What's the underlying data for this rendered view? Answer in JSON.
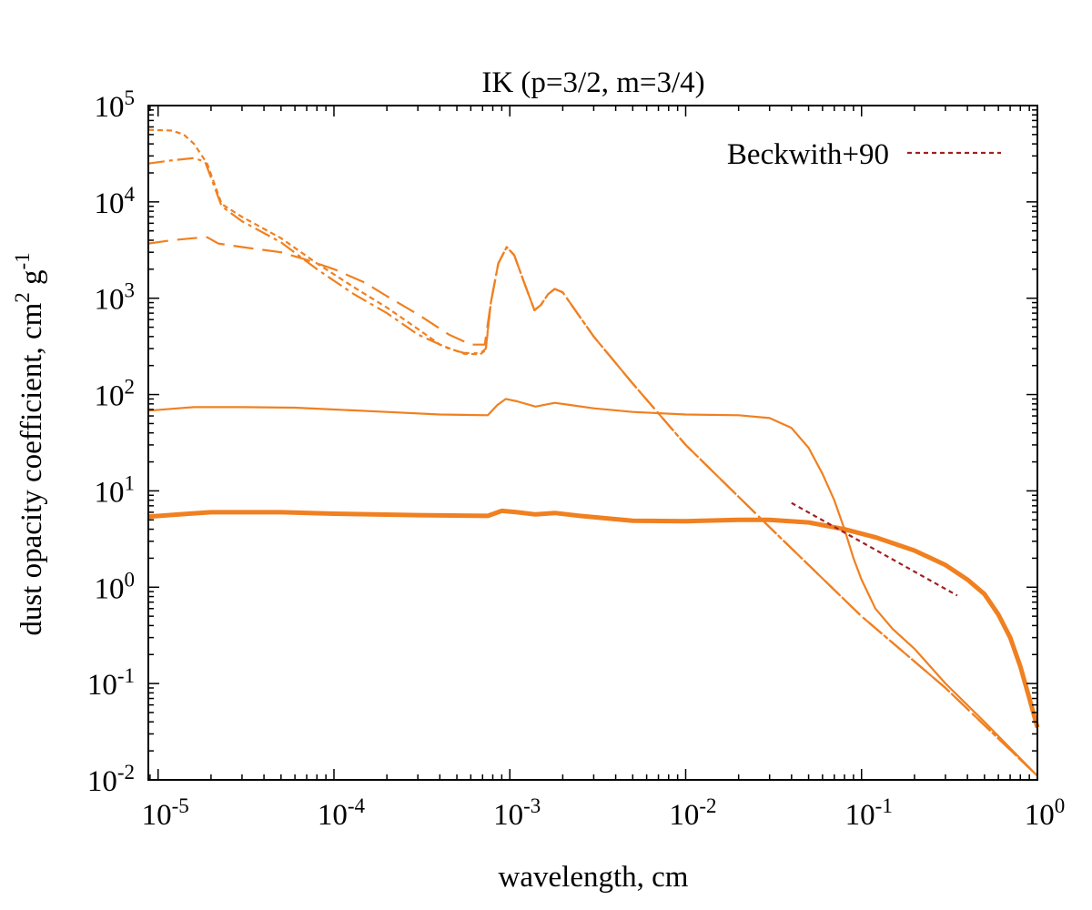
{
  "chart_data": {
    "type": "line",
    "title": "IK (p=3/2, m=3/4)",
    "xlabel": "wavelength, cm",
    "ylabel": {
      "base": "dust opacity coefficient, cm",
      "sup1": "2",
      "mid": " g",
      "sup2": "-1"
    },
    "xscale": "log",
    "yscale": "log",
    "xlim": [
      8.8e-06,
      1.0
    ],
    "ylim": [
      0.01,
      100000
    ],
    "x_ticks": [
      {
        "value": 1e-05,
        "base": "10",
        "exp": "-5"
      },
      {
        "value": 0.0001,
        "base": "10",
        "exp": "-4"
      },
      {
        "value": 0.001,
        "base": "10",
        "exp": "-3"
      },
      {
        "value": 0.01,
        "base": "10",
        "exp": "-2"
      },
      {
        "value": 0.1,
        "base": "10",
        "exp": "-1"
      },
      {
        "value": 1,
        "base": "10",
        "exp": "0"
      }
    ],
    "y_ticks": [
      {
        "value": 0.01,
        "base": "10",
        "exp": "-2"
      },
      {
        "value": 0.1,
        "base": "10",
        "exp": "-1"
      },
      {
        "value": 1,
        "base": "10",
        "exp": "0"
      },
      {
        "value": 10,
        "base": "10",
        "exp": "1"
      },
      {
        "value": 100,
        "base": "10",
        "exp": "2"
      },
      {
        "value": 1000,
        "base": "10",
        "exp": "3"
      },
      {
        "value": 10000,
        "base": "10",
        "exp": "4"
      },
      {
        "value": 100000,
        "base": "10",
        "exp": "5"
      }
    ],
    "grid": false,
    "legend_position": "top-right",
    "series": [
      {
        "style": "short-dash",
        "color": "#f08020",
        "width": 2.2,
        "points": [
          [
            8.8e-06,
            56000
          ],
          [
            1.2e-05,
            55000
          ],
          [
            1.4e-05,
            50000
          ],
          [
            1.6e-05,
            40000
          ],
          [
            1.9e-05,
            25000
          ],
          [
            2.3e-05,
            9500
          ],
          [
            3e-05,
            7000
          ],
          [
            5e-05,
            4200
          ],
          [
            8e-05,
            2300
          ],
          [
            0.00013,
            1300
          ],
          [
            0.0002,
            800
          ],
          [
            0.0003,
            480
          ],
          [
            0.0004,
            330
          ],
          [
            0.00055,
            265
          ],
          [
            0.00068,
            262
          ],
          [
            0.00073,
            290
          ],
          [
            0.00078,
            900
          ],
          [
            0.00086,
            2300
          ],
          [
            0.00096,
            3400
          ],
          [
            0.00106,
            2800
          ],
          [
            0.0012,
            1500
          ],
          [
            0.00138,
            750
          ],
          [
            0.0015,
            850
          ],
          [
            0.00165,
            1100
          ],
          [
            0.0018,
            1250
          ],
          [
            0.002,
            1150
          ],
          [
            0.003,
            400
          ],
          [
            0.005,
            130
          ],
          [
            0.01,
            30
          ],
          [
            0.03,
            4.2
          ],
          [
            0.1,
            0.5
          ],
          [
            0.3,
            0.09
          ],
          [
            1.0,
            0.011
          ]
        ]
      },
      {
        "style": "dash-dot",
        "color": "#f08020",
        "width": 2.2,
        "points": [
          [
            8.8e-06,
            25000
          ],
          [
            1.2e-05,
            27000
          ],
          [
            1.6e-05,
            28500
          ],
          [
            1.85e-05,
            26000
          ],
          [
            2.3e-05,
            9000
          ],
          [
            3e-05,
            6300
          ],
          [
            5e-05,
            3800
          ],
          [
            8e-05,
            2000
          ],
          [
            0.00013,
            1100
          ],
          [
            0.0002,
            700
          ],
          [
            0.0003,
            420
          ],
          [
            0.00045,
            300
          ],
          [
            0.00055,
            270
          ],
          [
            0.00068,
            268
          ],
          [
            0.00073,
            300
          ],
          [
            0.00078,
            900
          ],
          [
            0.00086,
            2300
          ],
          [
            0.00096,
            3400
          ],
          [
            0.00106,
            2800
          ],
          [
            0.0012,
            1500
          ],
          [
            0.00138,
            750
          ],
          [
            0.0015,
            850
          ],
          [
            0.00165,
            1100
          ],
          [
            0.0018,
            1250
          ],
          [
            0.002,
            1150
          ],
          [
            0.003,
            400
          ],
          [
            0.005,
            130
          ],
          [
            0.01,
            30
          ],
          [
            0.03,
            4.2
          ],
          [
            0.1,
            0.5
          ],
          [
            0.3,
            0.09
          ],
          [
            1.0,
            0.011
          ]
        ]
      },
      {
        "style": "long-dash",
        "color": "#f08020",
        "width": 2.2,
        "points": [
          [
            8.8e-06,
            3700
          ],
          [
            1.2e-05,
            4000
          ],
          [
            1.6e-05,
            4200
          ],
          [
            1.9e-05,
            4300
          ],
          [
            2.2e-05,
            3700
          ],
          [
            3e-05,
            3400
          ],
          [
            5e-05,
            3000
          ],
          [
            7e-05,
            2500
          ],
          [
            0.0001,
            2000
          ],
          [
            0.00015,
            1450
          ],
          [
            0.0002,
            1050
          ],
          [
            0.0003,
            680
          ],
          [
            0.00045,
            420
          ],
          [
            0.0006,
            330
          ],
          [
            0.00072,
            330
          ],
          [
            0.00078,
            900
          ],
          [
            0.00086,
            2300
          ],
          [
            0.00096,
            3400
          ],
          [
            0.00106,
            2800
          ],
          [
            0.0012,
            1500
          ],
          [
            0.00138,
            750
          ],
          [
            0.0015,
            850
          ],
          [
            0.00165,
            1100
          ],
          [
            0.0018,
            1250
          ],
          [
            0.002,
            1150
          ],
          [
            0.003,
            400
          ],
          [
            0.005,
            130
          ],
          [
            0.01,
            30
          ],
          [
            0.03,
            4.2
          ],
          [
            0.1,
            0.5
          ],
          [
            0.3,
            0.09
          ],
          [
            1.0,
            0.011
          ]
        ]
      },
      {
        "style": "solid",
        "color": "#f08020",
        "width": 2.2,
        "points": [
          [
            8.8e-06,
            68
          ],
          [
            1.3e-05,
            72
          ],
          [
            1.6e-05,
            74
          ],
          [
            3e-05,
            74
          ],
          [
            6e-05,
            73
          ],
          [
            0.0001,
            70
          ],
          [
            0.0002,
            66
          ],
          [
            0.0004,
            62
          ],
          [
            0.00075,
            61
          ],
          [
            0.00085,
            78
          ],
          [
            0.00095,
            90
          ],
          [
            0.0011,
            85
          ],
          [
            0.0014,
            75
          ],
          [
            0.0018,
            82
          ],
          [
            0.0022,
            78
          ],
          [
            0.003,
            72
          ],
          [
            0.005,
            66
          ],
          [
            0.01,
            62
          ],
          [
            0.02,
            61
          ],
          [
            0.03,
            57
          ],
          [
            0.04,
            45
          ],
          [
            0.05,
            28
          ],
          [
            0.06,
            15
          ],
          [
            0.07,
            8
          ],
          [
            0.08,
            4
          ],
          [
            0.09,
            2
          ],
          [
            0.1,
            1.2
          ],
          [
            0.12,
            0.6
          ],
          [
            0.15,
            0.37
          ],
          [
            0.2,
            0.23
          ],
          [
            0.3,
            0.1
          ],
          [
            0.5,
            0.04
          ],
          [
            1.0,
            0.011
          ]
        ]
      },
      {
        "style": "solid",
        "color": "#f08020",
        "width": 5,
        "points": [
          [
            8.8e-06,
            5.4
          ],
          [
            1.5e-05,
            5.8
          ],
          [
            2e-05,
            6.0
          ],
          [
            5e-05,
            6.0
          ],
          [
            0.0001,
            5.8
          ],
          [
            0.0003,
            5.6
          ],
          [
            0.00075,
            5.5
          ],
          [
            0.0009,
            6.2
          ],
          [
            0.0011,
            6.0
          ],
          [
            0.0014,
            5.7
          ],
          [
            0.0018,
            5.9
          ],
          [
            0.0025,
            5.5
          ],
          [
            0.005,
            4.9
          ],
          [
            0.01,
            4.85
          ],
          [
            0.02,
            5.0
          ],
          [
            0.03,
            5.0
          ],
          [
            0.05,
            4.7
          ],
          [
            0.08,
            4.0
          ],
          [
            0.12,
            3.3
          ],
          [
            0.2,
            2.4
          ],
          [
            0.3,
            1.7
          ],
          [
            0.4,
            1.2
          ],
          [
            0.5,
            0.85
          ],
          [
            0.6,
            0.52
          ],
          [
            0.7,
            0.3
          ],
          [
            0.8,
            0.15
          ],
          [
            0.9,
            0.07
          ],
          [
            1.0,
            0.035
          ]
        ]
      },
      {
        "name": "Beckwith+90",
        "style": "dotted",
        "color": "#a02020",
        "width": 2.2,
        "points": [
          [
            0.04,
            7.5
          ],
          [
            0.35,
            0.82
          ]
        ]
      }
    ]
  }
}
